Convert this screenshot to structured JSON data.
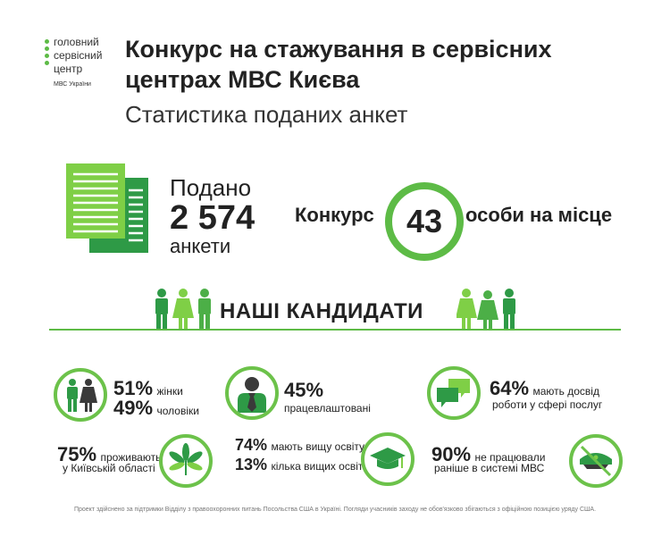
{
  "logo": {
    "lines": [
      "головний",
      "сервісний",
      "центр"
    ],
    "sub": "МВС України"
  },
  "header": {
    "title": "Конкурс на стажування в сервісних центрах МВС Києва",
    "subtitle": "Статистика поданих анкет"
  },
  "submitted": {
    "label": "Подано",
    "value": "2 574",
    "unit": "анкети"
  },
  "competition": {
    "label": "Конкурс",
    "value": "43",
    "suffix": "особи на місце"
  },
  "candidates": {
    "title": "НАШІ КАНДИДАТИ"
  },
  "stats": {
    "gender": {
      "women_pct": "51%",
      "women_label": "жінки",
      "men_pct": "49%",
      "men_label": "чоловіки",
      "icon": "men-women-icon"
    },
    "employed": {
      "pct": "45%",
      "label": "працевлаштовані",
      "icon": "employee-icon"
    },
    "service": {
      "pct": "64%",
      "label1": "мають досвід",
      "label2": "роботи у сфері послуг",
      "icon": "chat-bubbles-icon"
    },
    "region": {
      "pct": "75%",
      "label1": "проживають",
      "label2": "у Київській області",
      "icon": "chestnut-leaf-icon"
    },
    "education": {
      "pct1": "74%",
      "label1": "мають вищу освіту",
      "pct2": "13%",
      "label2": "кілька вищих освіт",
      "icon": "graduation-cap-icon"
    },
    "police": {
      "pct": "90%",
      "label1": "не працювали",
      "label2": "раніше в системі МВС",
      "icon": "crossed-police-cap-icon"
    }
  },
  "footer": "Проект здійснено за підтримки Відділу з правоохоронних питань Посольства США в Україні. Погляди учасників заходу не обов'язково збігаються з офіційною позицією уряду США.",
  "colors": {
    "accent": "#5dbb46",
    "accent_dark": "#2e9a46",
    "text": "#222222"
  }
}
